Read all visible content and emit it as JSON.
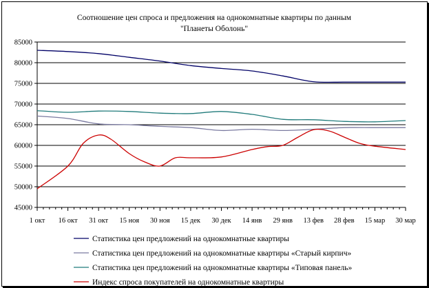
{
  "chart_data": {
    "type": "line",
    "title_lines": [
      "Соотношение цен спроса и предложения на однокомнатные квартиры по данным",
      "\"Планеты Оболонь\""
    ],
    "xlabel": "",
    "ylabel": "",
    "ylim": [
      45000,
      85000
    ],
    "yticks": [
      45000,
      50000,
      55000,
      60000,
      65000,
      70000,
      75000,
      80000,
      85000
    ],
    "x_labels": [
      "1 окт",
      "16 окт",
      "31 окт",
      "15 ноя",
      "30 ноя",
      "15 дек",
      "30 дек",
      "14 янв",
      "29 янв",
      "13 фев",
      "28 фев",
      "15 мар",
      "30 мар"
    ],
    "grid": {
      "horizontal": true,
      "vertical": false
    },
    "legend_position": "bottom",
    "series": [
      {
        "name": "Статистика цен предложений на однокомнатные квартиры",
        "color": "#000066",
        "points": [
          [
            0,
            83000
          ],
          [
            1,
            82700
          ],
          [
            2,
            82200
          ],
          [
            3,
            81300
          ],
          [
            4,
            80400
          ],
          [
            5,
            79300
          ],
          [
            6,
            78600
          ],
          [
            7,
            78000
          ],
          [
            8,
            76800
          ],
          [
            9,
            75400
          ],
          [
            10,
            75300
          ],
          [
            11,
            75300
          ],
          [
            12,
            75300
          ]
        ]
      },
      {
        "name": "Статистика цен предложений на однокомнатные квартиры «Старый кирпич»",
        "color": "#7a7aa0",
        "points": [
          [
            0,
            67100
          ],
          [
            1,
            66500
          ],
          [
            2,
            65200
          ],
          [
            3,
            65000
          ],
          [
            4,
            64600
          ],
          [
            5,
            64300
          ],
          [
            6,
            63600
          ],
          [
            7,
            63900
          ],
          [
            8,
            63600
          ],
          [
            9,
            63900
          ],
          [
            10,
            64300
          ],
          [
            11,
            64300
          ],
          [
            12,
            64300
          ]
        ]
      },
      {
        "name": "Статистика цен предложений на однокомнатные квартиры «Типовая панель»",
        "color": "#1f7a7a",
        "points": [
          [
            0,
            68400
          ],
          [
            1,
            68000
          ],
          [
            2,
            68300
          ],
          [
            3,
            68200
          ],
          [
            4,
            67800
          ],
          [
            5,
            67700
          ],
          [
            6,
            68200
          ],
          [
            7,
            67500
          ],
          [
            8,
            66300
          ],
          [
            9,
            66200
          ],
          [
            10,
            65800
          ],
          [
            11,
            65700
          ],
          [
            12,
            66000
          ]
        ]
      },
      {
        "name": "Индекс спроса покупателей на однокомнатные квартиры",
        "color": "#cc0000",
        "points": [
          [
            0,
            49500
          ],
          [
            1,
            55000
          ],
          [
            1.5,
            60500
          ],
          [
            2,
            62500
          ],
          [
            2.4,
            61500
          ],
          [
            3,
            58000
          ],
          [
            3.5,
            56000
          ],
          [
            4,
            55000
          ],
          [
            4.5,
            57000
          ],
          [
            5,
            57000
          ],
          [
            6,
            57200
          ],
          [
            7,
            59000
          ],
          [
            7.5,
            59700
          ],
          [
            8,
            60000
          ],
          [
            8.5,
            62000
          ],
          [
            9,
            63800
          ],
          [
            9.5,
            63500
          ],
          [
            10,
            62000
          ],
          [
            10.5,
            60500
          ],
          [
            11,
            59800
          ],
          [
            12,
            59000
          ]
        ]
      }
    ]
  }
}
